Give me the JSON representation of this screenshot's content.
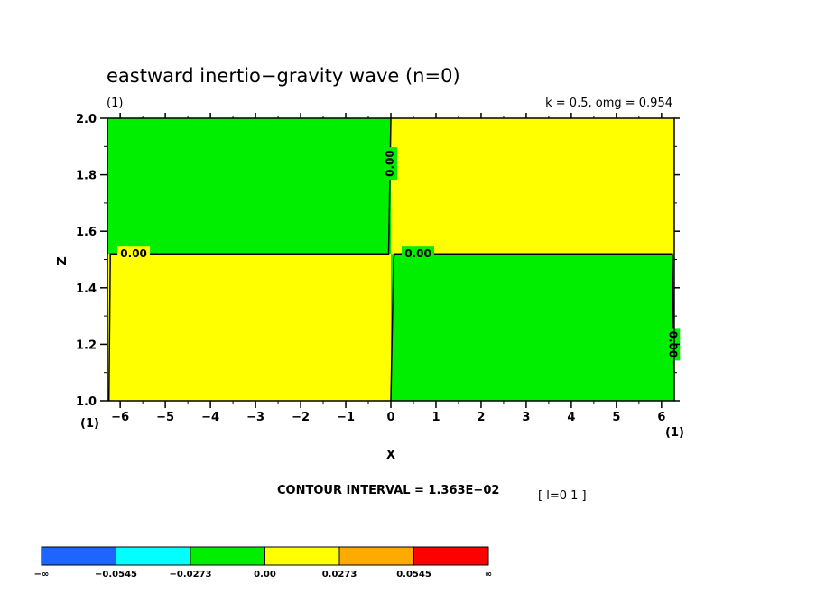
{
  "chart_data": {
    "type": "heatmap",
    "title": "eastward inertio−gravity wave (n=0)",
    "panel_label": "(1)",
    "parameters": "k = 0.5, omg = 0.954",
    "xlabel": "X",
    "ylabel": "Z",
    "xlim": [
      -6.2832,
      6.2832
    ],
    "ylim": [
      1.0,
      2.0
    ],
    "xticks": [
      -6,
      -5,
      -4,
      -3,
      -2,
      -1,
      0,
      1,
      2,
      3,
      4,
      5,
      6
    ],
    "yticks": [
      1.0,
      1.2,
      1.4,
      1.6,
      1.8,
      2.0
    ],
    "xtick_labels": [
      "−6",
      "−5",
      "−4",
      "−3",
      "−2",
      "−1",
      "0",
      "1",
      "2",
      "3",
      "4",
      "5",
      "6"
    ],
    "ytick_labels": [
      "1.0",
      "1.2",
      "1.4",
      "1.6",
      "1.8",
      "2.0"
    ],
    "x_corner_left": "(1)",
    "x_corner_right": "(1)",
    "regions": [
      {
        "x": [
          -6.2832,
          0.0
        ],
        "z": [
          1.52,
          2.0
        ],
        "sign": "negative",
        "color": "#00ee00"
      },
      {
        "x": [
          0.0,
          6.2832
        ],
        "z": [
          1.52,
          2.0
        ],
        "sign": "positive",
        "color": "#ffff00"
      },
      {
        "x": [
          -6.2832,
          0.0
        ],
        "z": [
          1.0,
          1.52
        ],
        "sign": "positive",
        "color": "#ffff00"
      },
      {
        "x": [
          0.0,
          6.2832
        ],
        "z": [
          1.0,
          1.52
        ],
        "sign": "negative",
        "color": "#00ee00"
      }
    ],
    "zero_contours": [
      {
        "points": [
          [
            -6.25,
            1.0
          ],
          [
            -6.22,
            1.52
          ],
          [
            -0.05,
            1.52
          ],
          [
            -0.02,
            1.8
          ],
          [
            0.0,
            2.0
          ]
        ]
      },
      {
        "points": [
          [
            0.0,
            1.0
          ],
          [
            0.06,
            1.5
          ],
          [
            0.08,
            1.52
          ],
          [
            6.24,
            1.52
          ],
          [
            6.28,
            1.1
          ]
        ]
      }
    ],
    "contour_labels": [
      {
        "text": "0.00",
        "x": -5.7,
        "z": 1.52,
        "rotate": 0
      },
      {
        "text": "0.00",
        "x": 0.6,
        "z": 1.52,
        "rotate": 0
      },
      {
        "text": "0.00",
        "x": -0.02,
        "z": 1.84,
        "rotate": -90
      },
      {
        "text": "0.00",
        "x": 6.25,
        "z": 1.2,
        "rotate": 90
      }
    ],
    "contour_interval": "CONTOUR INTERVAL = 1.363E−02",
    "index_note": "[ l=0 1 ]",
    "colorbar": {
      "colors": [
        "#1e64ff",
        "#00ffff",
        "#00ee00",
        "#ffff00",
        "#ffaa00",
        "#ff0000"
      ],
      "labels": [
        "−∞",
        "−0.0545",
        "−0.0273",
        "0.00",
        "0.0273",
        "0.0545",
        "∞"
      ]
    }
  }
}
